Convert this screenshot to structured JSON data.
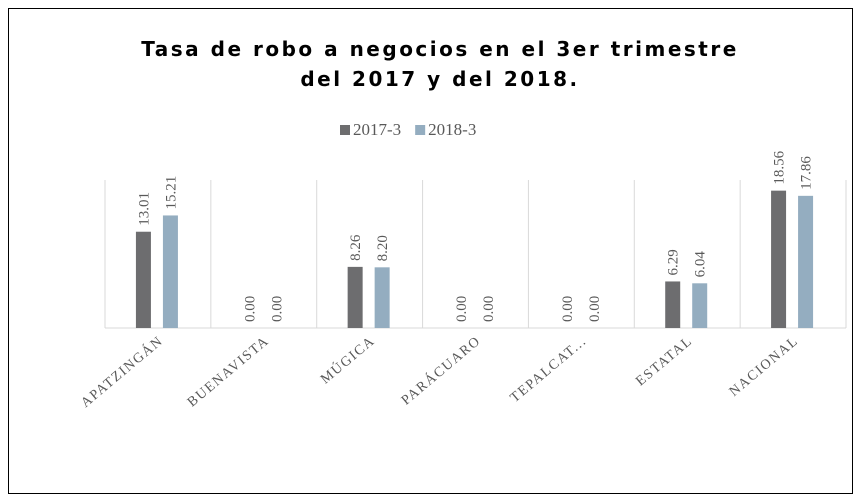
{
  "chart_data": {
    "type": "bar",
    "title": "Tasa de robo a negocios en el 3er trimestre del 2017 y  del 2018.",
    "categories": [
      "APATZINGÁN",
      "BUENAVISTA",
      "MÚGICA",
      "PARÁCUARO",
      "TEPALCAT...",
      "ESTATAL",
      "NACIONAL"
    ],
    "series": [
      {
        "name": "2017-3",
        "color": "#6d6d6f",
        "values": [
          13.01,
          0,
          8.26,
          0,
          0,
          6.29,
          18.56
        ],
        "value_labels": [
          "13.01",
          "0.00",
          "8.26",
          "0.00",
          "0.00",
          "6.29",
          "18.56"
        ]
      },
      {
        "name": "2018-3",
        "color": "#94adc0",
        "values": [
          15.21,
          0,
          8.2,
          0,
          0,
          6.04,
          17.86
        ],
        "value_labels": [
          "15.21",
          "0.00",
          "8.20",
          "0.00",
          "0.00",
          "6.04",
          "17.86"
        ]
      }
    ],
    "ylim": [
      0,
      20
    ],
    "legend": "top"
  }
}
